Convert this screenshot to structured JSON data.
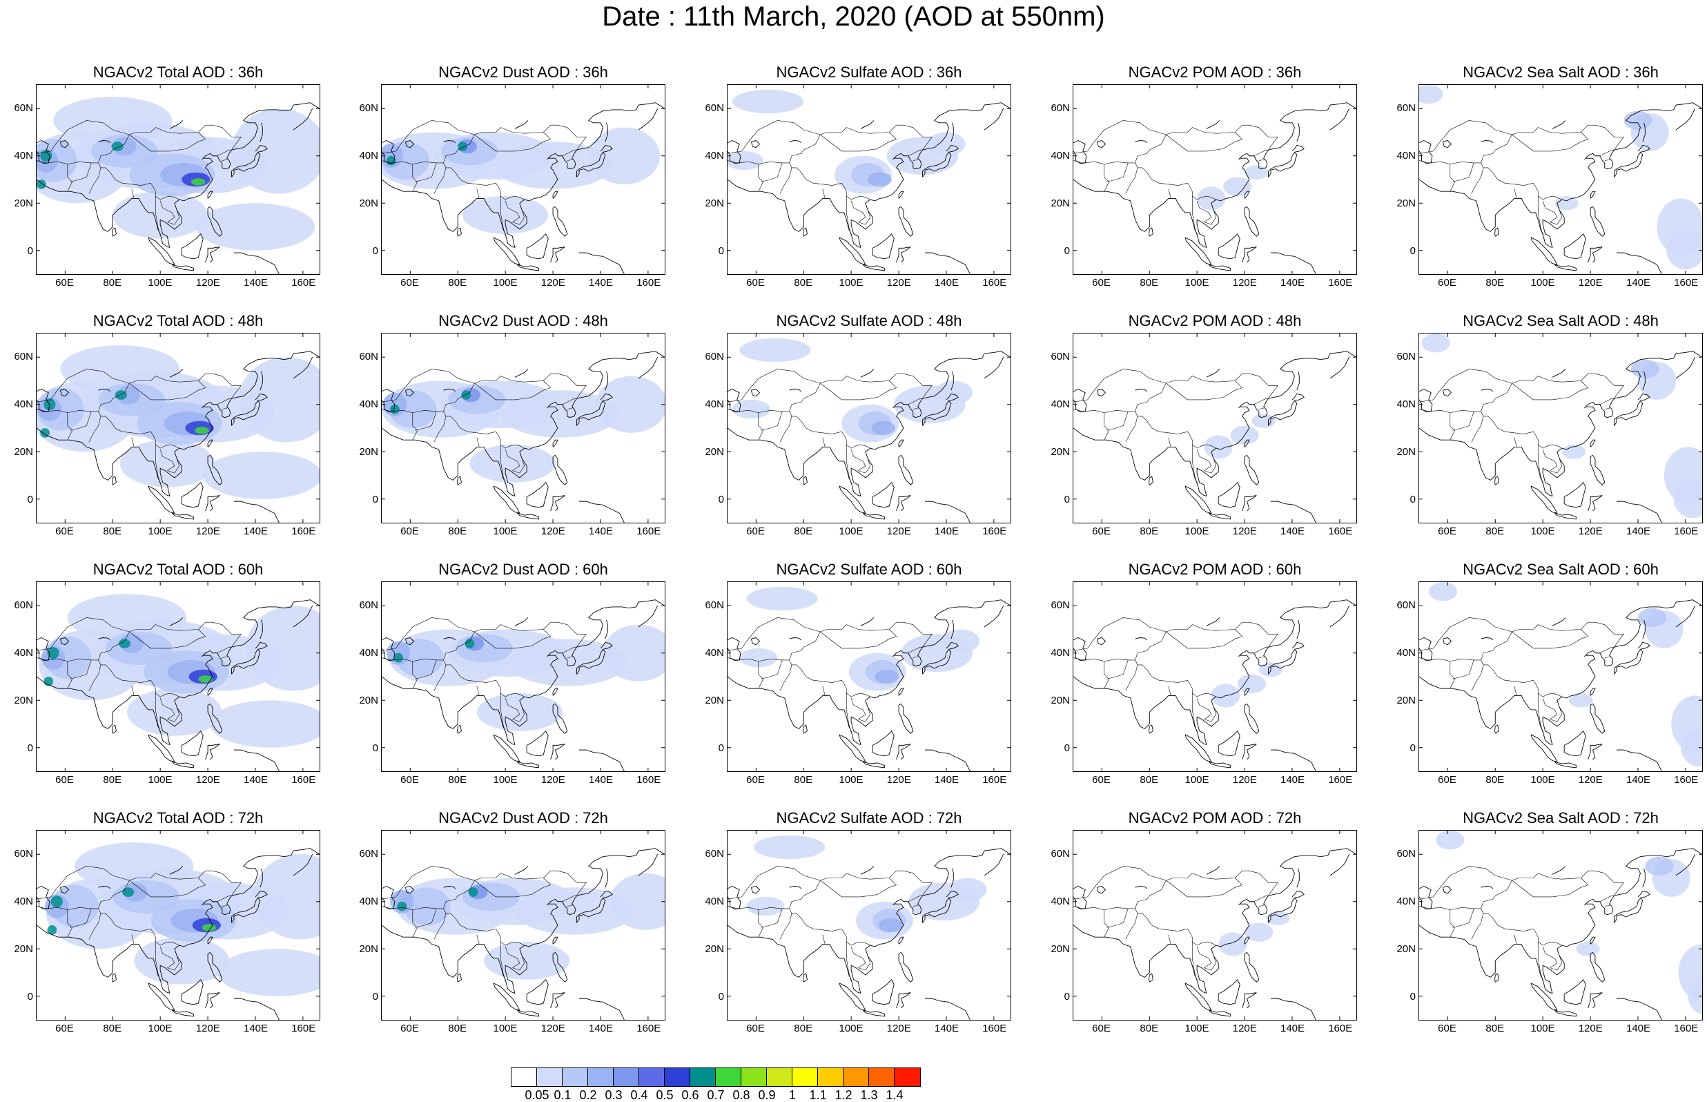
{
  "title": "Date : 11th March, 2020 (AOD at 550nm)",
  "panels": [
    {
      "title": "NGACv2 Total AOD : 36h",
      "species": "total",
      "hour": 36
    },
    {
      "title": "NGACv2 Dust AOD : 36h",
      "species": "dust",
      "hour": 36
    },
    {
      "title": "NGACv2 Sulfate AOD : 36h",
      "species": "sulfate",
      "hour": 36
    },
    {
      "title": "NGACv2 POM AOD : 36h",
      "species": "pom",
      "hour": 36
    },
    {
      "title": "NGACv2 Sea Salt AOD : 36h",
      "species": "seasalt",
      "hour": 36
    },
    {
      "title": "NGACv2 Total AOD : 48h",
      "species": "total",
      "hour": 48
    },
    {
      "title": "NGACv2 Dust AOD : 48h",
      "species": "dust",
      "hour": 48
    },
    {
      "title": "NGACv2 Sulfate AOD : 48h",
      "species": "sulfate",
      "hour": 48
    },
    {
      "title": "NGACv2 POM AOD : 48h",
      "species": "pom",
      "hour": 48
    },
    {
      "title": "NGACv2 Sea Salt AOD : 48h",
      "species": "seasalt",
      "hour": 48
    },
    {
      "title": "NGACv2 Total AOD : 60h",
      "species": "total",
      "hour": 60
    },
    {
      "title": "NGACv2 Dust AOD : 60h",
      "species": "dust",
      "hour": 60
    },
    {
      "title": "NGACv2 Sulfate AOD : 60h",
      "species": "sulfate",
      "hour": 60
    },
    {
      "title": "NGACv2 POM AOD : 60h",
      "species": "pom",
      "hour": 60
    },
    {
      "title": "NGACv2 Sea Salt AOD : 60h",
      "species": "seasalt",
      "hour": 60
    },
    {
      "title": "NGACv2 Total AOD : 72h",
      "species": "total",
      "hour": 72
    },
    {
      "title": "NGACv2 Dust AOD : 72h",
      "species": "dust",
      "hour": 72
    },
    {
      "title": "NGACv2 Sulfate AOD : 72h",
      "species": "sulfate",
      "hour": 72
    },
    {
      "title": "NGACv2 POM AOD : 72h",
      "species": "pom",
      "hour": 72
    },
    {
      "title": "NGACv2 Sea Salt  AOD : 72h",
      "species": "seasalt",
      "hour": 72
    }
  ],
  "map": {
    "lon_range": [
      48,
      167
    ],
    "lat_range": [
      -10,
      70
    ],
    "lon_ticks": [
      "60E",
      "80E",
      "100E",
      "120E",
      "140E",
      "160E"
    ],
    "lat_ticks": [
      "60N",
      "40N",
      "20N",
      "0"
    ],
    "lon_tick_values": [
      60,
      80,
      100,
      120,
      140,
      160
    ],
    "lat_tick_values": [
      60,
      40,
      20,
      0
    ]
  },
  "colorbar": {
    "labels": [
      "0.05",
      "0.1",
      "0.2",
      "0.3",
      "0.4",
      "0.5",
      "0.6",
      "0.7",
      "0.8",
      "0.9",
      "1",
      "1.1",
      "1.2",
      "1.3",
      "1.4"
    ],
    "colors": [
      "#ffffff",
      "#d0dcfa",
      "#b6c8f6",
      "#9ab3f2",
      "#7d97ee",
      "#5e6be8",
      "#2e3fd8",
      "#008f8c",
      "#3fd63a",
      "#8ee21a",
      "#cfe919",
      "#ffff00",
      "#ffcd00",
      "#ff9800",
      "#ff6200",
      "#ff1a00"
    ]
  }
}
